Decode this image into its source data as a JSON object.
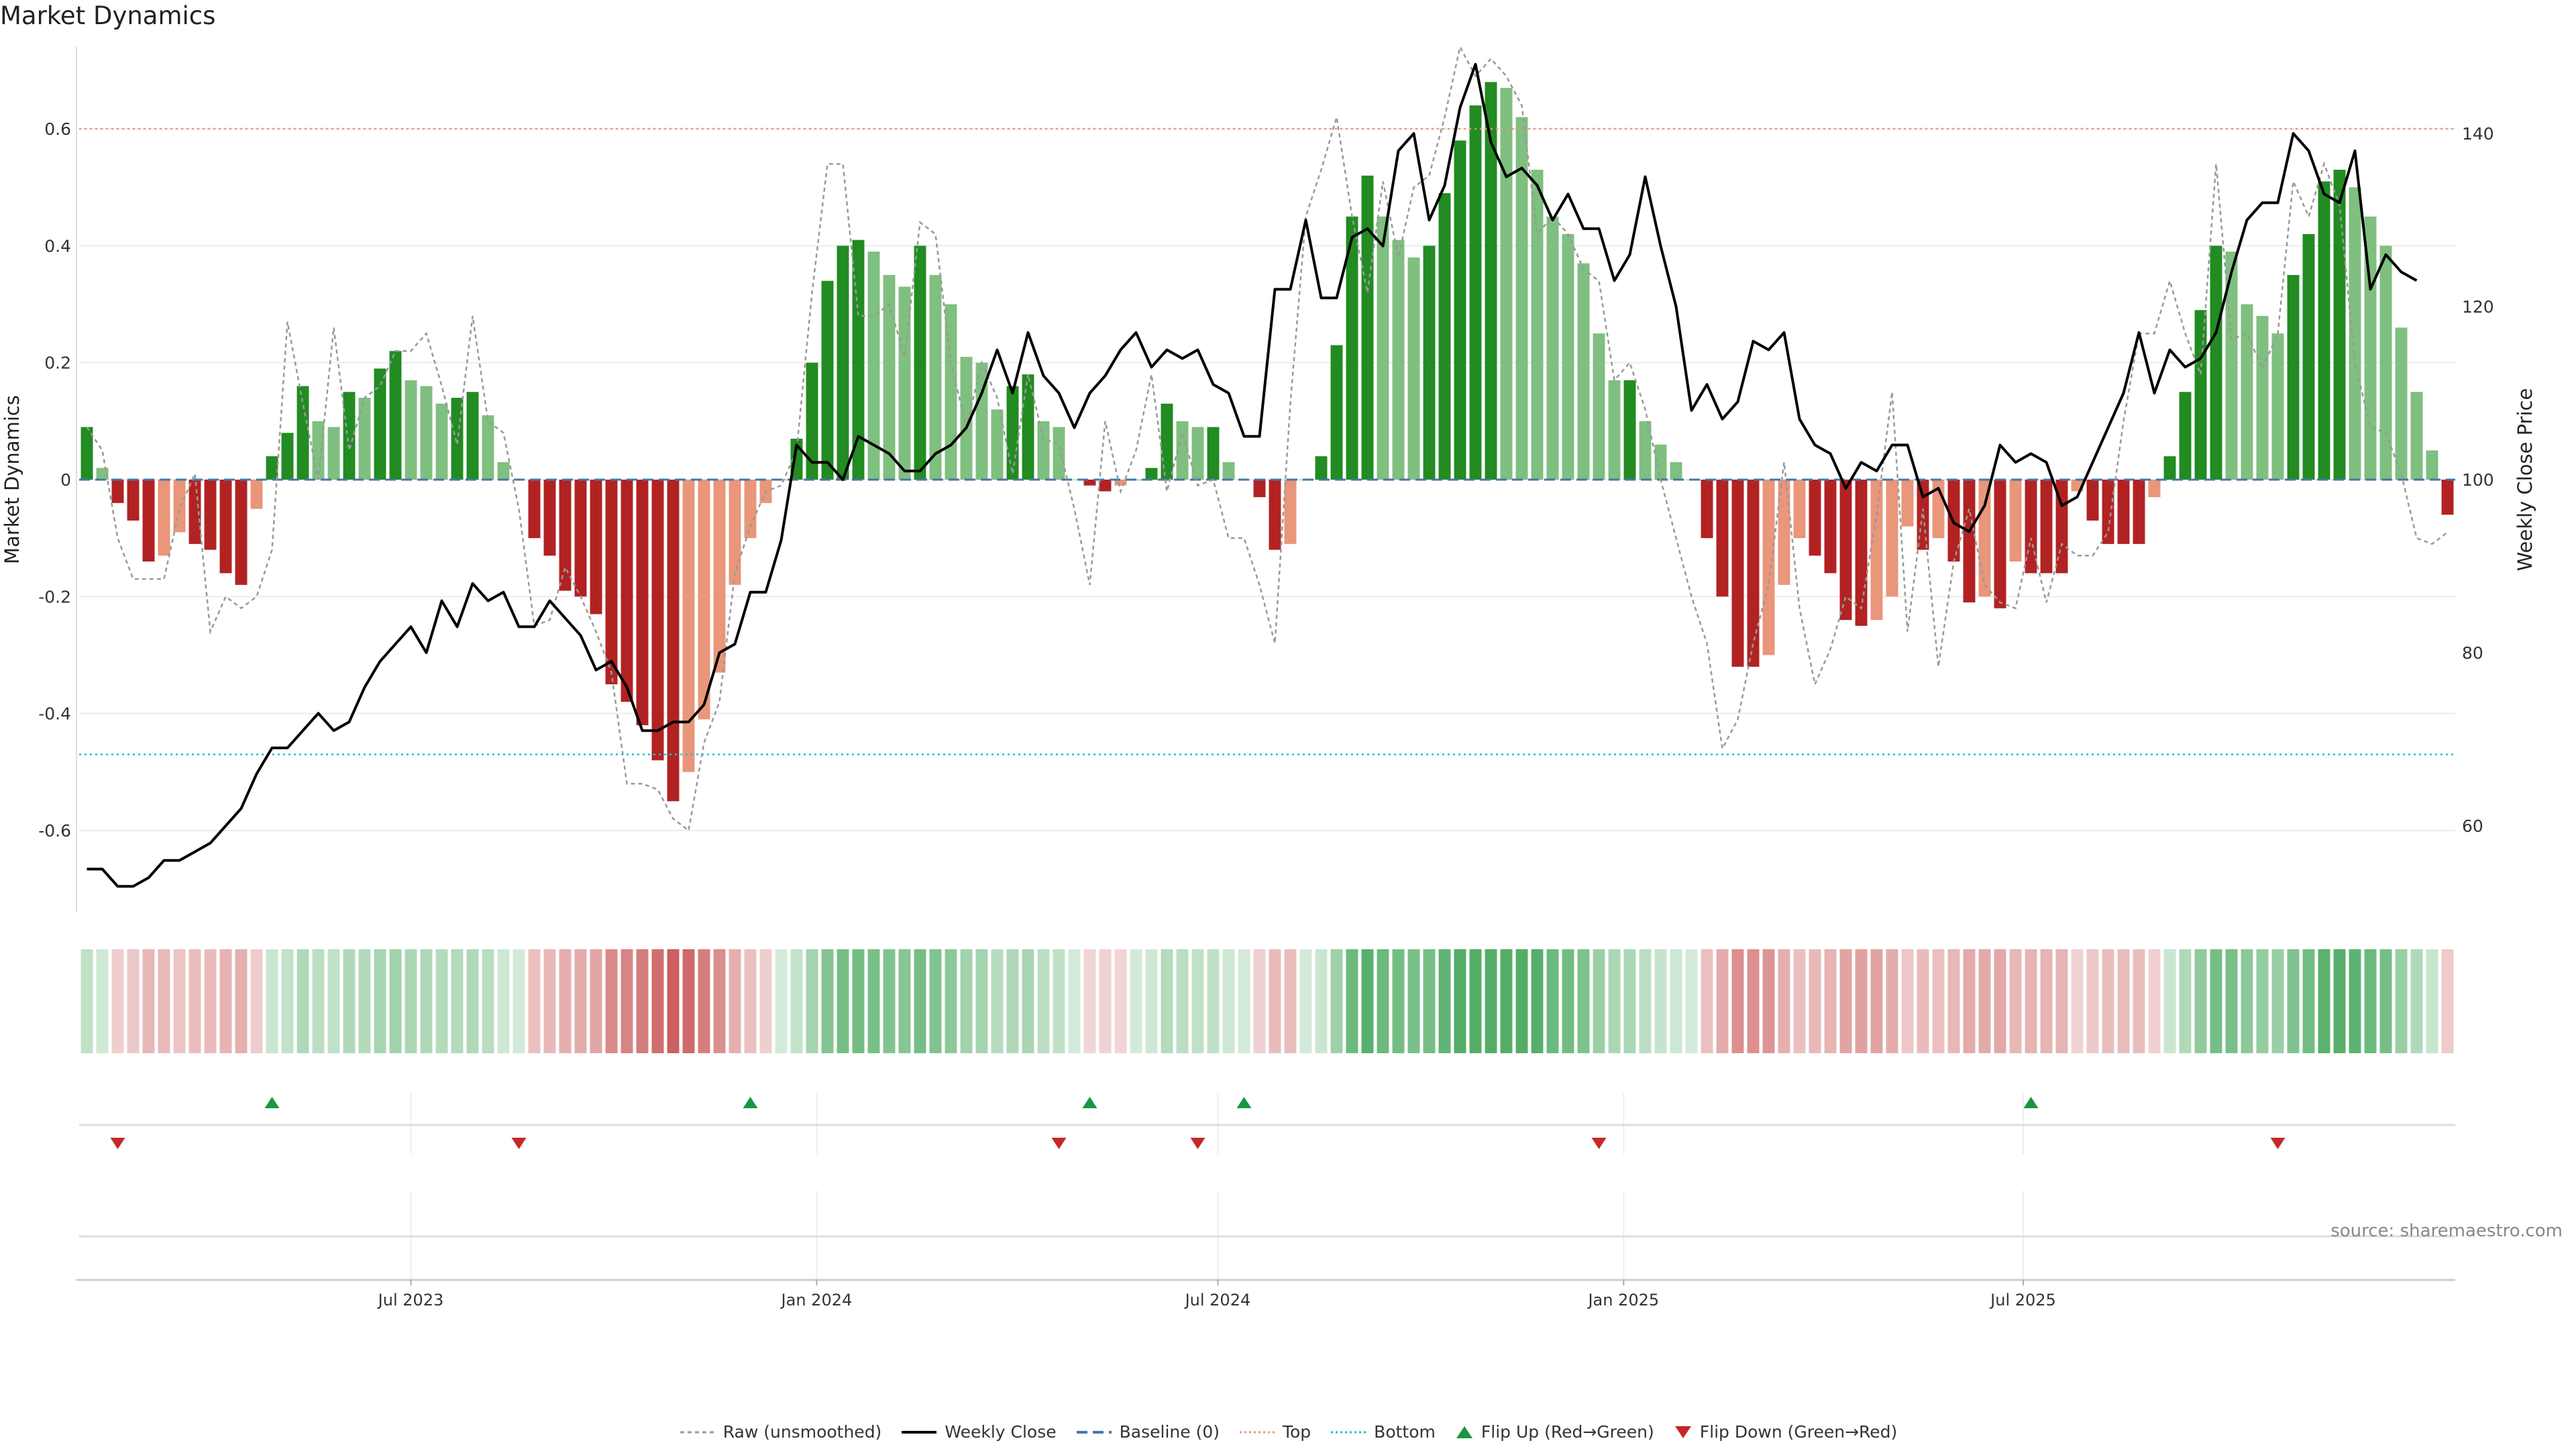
{
  "title": "Market Dynamics",
  "source": "source: sharemaestro.com",
  "colors": {
    "pos_strong": "#228B22",
    "pos_weak": "#7FBF7F",
    "neg_strong": "#B22222",
    "neg_weak": "#E9967A",
    "raw_line": "#999999",
    "close_line": "#000000",
    "baseline": "#4477AA",
    "top_line": "#E9967A",
    "bottom_line": "#17BECF",
    "flip_up": "#1a9641",
    "flip_down": "#c62828"
  },
  "legend": [
    {
      "key": "raw",
      "label": "Raw (unsmoothed)"
    },
    {
      "key": "close",
      "label": "Weekly Close"
    },
    {
      "key": "baseline",
      "label": "Baseline (0)"
    },
    {
      "key": "top",
      "label": "Top"
    },
    {
      "key": "bottom",
      "label": "Bottom"
    },
    {
      "key": "flipup",
      "label": "Flip Up (Red→Green)"
    },
    {
      "key": "flipdown",
      "label": "Flip Down (Green→Red)"
    }
  ],
  "chart_data": {
    "type": "bar",
    "ylabel": "Market Dynamics",
    "y2label": "Weekly Close Price",
    "ylim": [
      -0.74,
      0.74
    ],
    "y2lim": [
      50,
      150
    ],
    "yticks": [
      "-0.6",
      "-0.4",
      "-0.2",
      "0",
      "0.2",
      "0.4",
      "0.6"
    ],
    "y2ticks": [
      "60",
      "80",
      "100",
      "120",
      "140"
    ],
    "top_threshold": 0.6,
    "bottom_threshold": -0.47,
    "baseline": 0,
    "xticks": [
      {
        "week": 21.5,
        "label": "Jul 2023"
      },
      {
        "week": 47.8,
        "label": "Jan 2024"
      },
      {
        "week": 73.8,
        "label": "Jul 2024"
      },
      {
        "week": 100.1,
        "label": "Jan 2025"
      },
      {
        "week": 126.0,
        "label": "Jul 2025"
      }
    ],
    "smoothed": [
      0.09,
      0.02,
      -0.04,
      -0.07,
      -0.14,
      -0.13,
      -0.09,
      -0.11,
      -0.12,
      -0.16,
      -0.18,
      -0.05,
      0.04,
      0.08,
      0.16,
      0.1,
      0.09,
      0.15,
      0.14,
      0.19,
      0.22,
      0.17,
      0.16,
      0.13,
      0.14,
      0.15,
      0.11,
      0.03,
      0,
      -0.1,
      -0.13,
      -0.19,
      -0.2,
      -0.23,
      -0.35,
      -0.38,
      -0.42,
      -0.48,
      -0.55,
      -0.5,
      -0.41,
      -0.33,
      -0.18,
      -0.1,
      -0.04,
      0,
      0.07,
      0.2,
      0.34,
      0.4,
      0.41,
      0.39,
      0.35,
      0.33,
      0.4,
      0.35,
      0.3,
      0.21,
      0.2,
      0.12,
      0.16,
      0.18,
      0.1,
      0.09,
      0,
      -0.01,
      -0.02,
      -0.01,
      0,
      0.02,
      0.13,
      0.1,
      0.09,
      0.09,
      0.03,
      0,
      -0.03,
      -0.12,
      -0.11,
      0,
      0.04,
      0.23,
      0.45,
      0.52,
      0.45,
      0.41,
      0.38,
      0.4,
      0.49,
      0.58,
      0.64,
      0.68,
      0.67,
      0.62,
      0.53,
      0.45,
      0.42,
      0.37,
      0.25,
      0.17,
      0.17,
      0.1,
      0.06,
      0.03,
      0,
      -0.1,
      -0.2,
      -0.32,
      -0.32,
      -0.3,
      -0.18,
      -0.1,
      -0.13,
      -0.16,
      -0.24,
      -0.25,
      -0.24,
      -0.2,
      -0.08,
      -0.12,
      -0.1,
      -0.14,
      -0.21,
      -0.2,
      -0.22,
      -0.14,
      -0.16,
      -0.16,
      -0.16,
      -0.02,
      -0.07,
      -0.11,
      -0.11,
      -0.11,
      -0.03,
      0.04,
      0.15,
      0.29,
      0.4,
      0.39,
      0.3,
      0.28,
      0.25,
      0.35,
      0.42,
      0.51,
      0.53,
      0.5,
      0.45,
      0.4,
      0.26,
      0.15,
      0.05,
      -0.06
    ],
    "raw": [
      0.09,
      0.05,
      -0.1,
      -0.17,
      -0.17,
      -0.17,
      -0.05,
      0.01,
      -0.26,
      -0.2,
      -0.22,
      -0.2,
      -0.12,
      0.27,
      0.13,
      0,
      0.26,
      0.05,
      0.14,
      0.16,
      0.22,
      0.22,
      0.25,
      0.16,
      0.06,
      0.28,
      0.1,
      0.08,
      -0.05,
      -0.25,
      -0.24,
      -0.15,
      -0.2,
      -0.26,
      -0.33,
      -0.52,
      -0.52,
      -0.53,
      -0.58,
      -0.6,
      -0.45,
      -0.38,
      -0.16,
      -0.08,
      -0.02,
      -0.01,
      0.05,
      0.32,
      0.54,
      0.54,
      0.28,
      0.28,
      0.3,
      0.21,
      0.44,
      0.42,
      0.2,
      0.09,
      0.2,
      0.14,
      0.01,
      0.18,
      0.07,
      0.06,
      -0.05,
      -0.18,
      0.1,
      -0.02,
      0.05,
      0.18,
      -0.02,
      0.08,
      -0.01,
      0,
      -0.1,
      -0.1,
      -0.18,
      -0.28,
      0.13,
      0.45,
      0.53,
      0.62,
      0.45,
      0.32,
      0.51,
      0.38,
      0.5,
      0.52,
      0.62,
      0.74,
      0.69,
      0.72,
      0.69,
      0.64,
      0.42,
      0.45,
      0.42,
      0.36,
      0.34,
      0.17,
      0.2,
      0.12,
      0,
      -0.1,
      -0.2,
      -0.28,
      -0.46,
      -0.41,
      -0.28,
      -0.18,
      0.03,
      -0.22,
      -0.35,
      -0.29,
      -0.2,
      -0.22,
      -0.06,
      0.15,
      -0.26,
      -0.05,
      -0.32,
      -0.14,
      -0.05,
      -0.18,
      -0.21,
      -0.22,
      -0.1,
      -0.21,
      -0.11,
      -0.13,
      -0.13,
      -0.09,
      0.1,
      0.25,
      0.25,
      0.34,
      0.25,
      0.18,
      0.54,
      0.24,
      0.25,
      0.19,
      0.25,
      0.51,
      0.45,
      0.54,
      0.47,
      0.2,
      0.09,
      0.08,
      0.01,
      -0.1,
      -0.11,
      -0.09
    ],
    "weekly_close": [
      55,
      55,
      53,
      53,
      54,
      56,
      56,
      57,
      58,
      60,
      62,
      66,
      69,
      69,
      71,
      73,
      71,
      72,
      76,
      79,
      81,
      83,
      80,
      86,
      83,
      88,
      86,
      87,
      83,
      83,
      86,
      84,
      82,
      78,
      79,
      76,
      71,
      71,
      72,
      72,
      74,
      80,
      81,
      87,
      87,
      93,
      104,
      102,
      102,
      100,
      105,
      104,
      103,
      101,
      101,
      103,
      104,
      106,
      110,
      115,
      110,
      117,
      112,
      110,
      106,
      110,
      112,
      115,
      117,
      113,
      115,
      114,
      115,
      111,
      110,
      105,
      105,
      122,
      122,
      130,
      121,
      121,
      128,
      129,
      127,
      138,
      140,
      130,
      134,
      143,
      148,
      139,
      135,
      136,
      134,
      130,
      133,
      129,
      129,
      123,
      126,
      135,
      127,
      120,
      108,
      111,
      107,
      109,
      116,
      115,
      117,
      107,
      104,
      103,
      99,
      102,
      101,
      104,
      104,
      98,
      99,
      95,
      94,
      97,
      104,
      102,
      103,
      102,
      97,
      98,
      102,
      106,
      110,
      117,
      110,
      115,
      113,
      114,
      117,
      124,
      130,
      132,
      132,
      140,
      138,
      133,
      132,
      138,
      122,
      126,
      124,
      123
    ],
    "flip_up_weeks": [
      12,
      43,
      65,
      75,
      126
    ],
    "flip_down_weeks": [
      2,
      28,
      63,
      72,
      98,
      142
    ]
  }
}
